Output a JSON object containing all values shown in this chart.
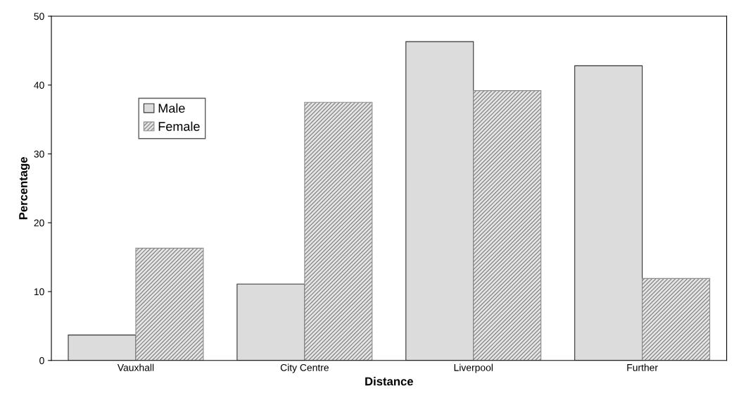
{
  "chart_data": {
    "type": "bar",
    "xlabel": "Distance",
    "ylabel": "Percentage",
    "categories": [
      "Vauxhall",
      "City Centre",
      "Liverpool",
      "Further"
    ],
    "series": [
      {
        "name": "Male",
        "color": "#dcdcdc",
        "values": [
          3.7,
          11.1,
          46.3,
          42.8
        ]
      },
      {
        "name": "Female",
        "color": "#8c8c8c",
        "values": [
          16.3,
          37.5,
          39.2,
          11.9
        ]
      }
    ],
    "ylim": [
      0,
      50
    ],
    "yticks": [
      0,
      10,
      20,
      30,
      40,
      50
    ],
    "grid": false,
    "legend": "top left"
  }
}
